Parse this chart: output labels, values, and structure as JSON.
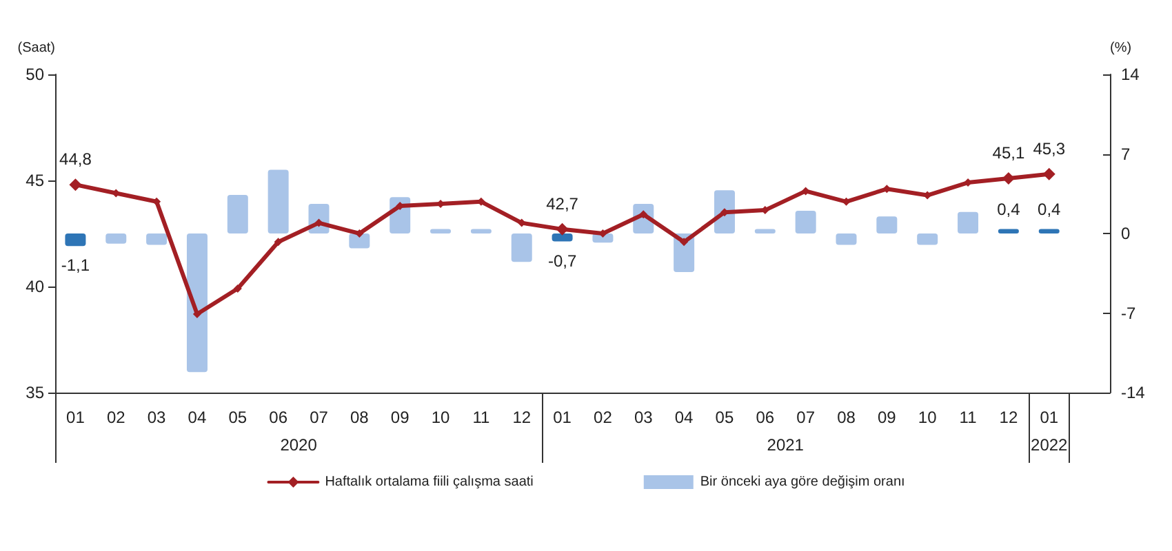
{
  "chart_data": {
    "type": "line",
    "categories": [
      "01",
      "02",
      "03",
      "04",
      "05",
      "06",
      "07",
      "08",
      "09",
      "10",
      "11",
      "12",
      "01",
      "02",
      "03",
      "04",
      "05",
      "06",
      "07",
      "08",
      "09",
      "10",
      "11",
      "12",
      "01",
      null
    ],
    "series": [
      {
        "name": "Haftalık ortalama fiili çalışma saati",
        "color": "#a31f24",
        "marker": "diamond",
        "values": [
          44.8,
          44.4,
          44.0,
          38.7,
          39.9,
          42.1,
          43.0,
          42.5,
          43.8,
          43.9,
          44.0,
          43.0,
          42.7,
          42.5,
          43.4,
          42.1,
          43.5,
          43.6,
          44.5,
          44.0,
          44.6,
          44.3,
          44.9,
          45.1,
          45.3,
          null
        ],
        "value_labels": [
          "44,8",
          null,
          null,
          null,
          null,
          null,
          null,
          null,
          null,
          null,
          null,
          null,
          "42,7",
          null,
          null,
          null,
          null,
          null,
          null,
          null,
          null,
          null,
          null,
          "45,1",
          "45,3",
          null
        ]
      },
      {
        "name": "Bir önceki aya göre değişim oranı",
        "type": "bar",
        "axis": "y2",
        "color": "#a9c4e8",
        "colors": [
          "#2e75b6",
          "#a9c4e8",
          "#a9c4e8",
          "#a9c4e8",
          "#a9c4e8",
          "#a9c4e8",
          "#a9c4e8",
          "#a9c4e8",
          "#a9c4e8",
          "#a9c4e8",
          "#a9c4e8",
          "#a9c4e8",
          "#2e75b6",
          "#a9c4e8",
          "#a9c4e8",
          "#a9c4e8",
          "#a9c4e8",
          "#a9c4e8",
          "#a9c4e8",
          "#a9c4e8",
          "#a9c4e8",
          "#a9c4e8",
          "#a9c4e8",
          "#2e75b6",
          "#2e75b6",
          "#a9c4e8"
        ],
        "values": [
          -1.1,
          -0.9,
          -1.0,
          -12.2,
          3.4,
          5.6,
          2.6,
          -1.3,
          3.2,
          0.4,
          0.4,
          -2.5,
          -0.7,
          -0.8,
          2.6,
          -3.4,
          3.8,
          0.4,
          2.0,
          -1.0,
          1.5,
          -1.0,
          1.9,
          0.4,
          0.4,
          null
        ],
        "value_labels": [
          "-1,1",
          null,
          null,
          null,
          null,
          null,
          null,
          null,
          null,
          null,
          null,
          null,
          "-0,7",
          null,
          null,
          null,
          null,
          null,
          null,
          null,
          null,
          null,
          null,
          "0,4",
          "0,4",
          null
        ]
      }
    ],
    "ylabel": "(Saat)",
    "y2label": "(%)",
    "ylim": [
      35,
      50
    ],
    "yticks": [
      35,
      40,
      45,
      50
    ],
    "y2lim": [
      -14,
      14
    ],
    "y2ticks": [
      -14,
      -7,
      0,
      7,
      14
    ],
    "annotations": [
      "2020",
      "2021",
      "2022"
    ],
    "grid": false,
    "legend": "bottom"
  }
}
